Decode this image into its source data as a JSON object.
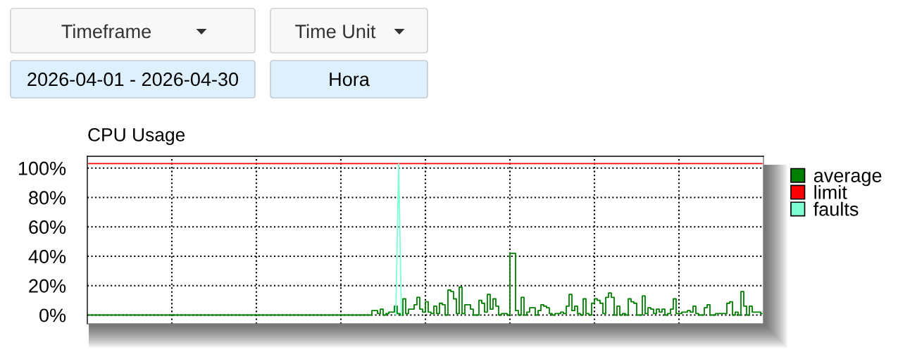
{
  "chart_data": {
    "type": "step",
    "title": "CPU Usage",
    "annotations": [
      "Timeframe",
      "Time Unit",
      "2026-04-01 - 2026-04-30",
      "Hora"
    ],
    "categories": [
      null,
      null,
      null,
      null,
      null,
      null,
      null,
      null,
      null,
      null,
      null,
      null,
      null,
      null,
      null,
      null,
      null,
      null,
      null,
      null,
      null,
      null,
      null,
      null,
      null,
      null,
      null,
      null,
      null,
      null,
      null,
      null,
      null,
      null,
      null,
      null,
      null,
      null,
      null,
      null,
      null,
      null,
      null,
      null,
      null,
      null,
      null,
      null,
      null,
      null,
      null,
      null,
      null,
      null,
      null,
      null,
      null,
      null,
      null,
      null,
      null,
      null,
      null,
      null,
      null,
      null,
      null,
      null,
      null,
      null,
      null,
      null,
      null,
      null,
      null,
      null,
      null,
      null,
      null,
      null,
      null,
      null,
      null,
      null,
      null,
      null,
      null,
      null,
      null,
      null,
      null,
      null,
      null,
      null,
      null,
      null,
      null,
      null,
      null,
      null,
      null,
      null,
      null,
      null,
      null,
      null,
      null,
      null,
      null,
      null,
      null,
      null,
      null,
      null,
      null,
      null,
      null,
      null,
      null,
      null,
      null,
      null,
      null,
      null,
      null,
      null,
      null,
      null,
      null,
      null,
      null,
      null,
      null,
      null,
      null,
      null,
      null,
      null,
      null,
      null,
      null,
      null,
      null,
      null,
      null,
      null,
      null,
      null,
      null,
      null,
      null,
      null,
      null,
      null,
      null,
      null,
      null,
      null,
      null,
      null,
      null,
      null,
      null,
      null,
      null,
      null,
      null,
      null,
      null,
      null,
      null,
      null,
      null,
      null,
      null,
      null,
      null,
      null,
      null,
      null,
      null,
      null,
      null,
      null,
      null,
      null,
      null,
      null,
      null,
      null,
      null,
      null,
      null,
      null,
      null,
      null,
      null,
      null,
      null,
      null,
      null,
      null,
      null,
      null,
      null,
      null,
      null,
      null,
      null,
      null,
      null,
      null,
      null,
      null,
      null,
      null,
      null,
      null,
      null,
      null,
      null,
      null,
      null,
      null,
      null,
      null,
      null,
      null,
      null,
      null,
      null,
      null,
      null,
      null,
      null,
      null,
      null,
      null,
      null,
      null
    ],
    "series": [
      {
        "name": "average",
        "color": "#008000",
        "values": [
          0,
          0,
          0,
          0,
          0,
          0,
          0,
          0,
          0,
          0,
          0,
          0,
          0,
          0,
          0,
          0,
          0,
          0,
          0,
          0,
          0,
          0,
          0,
          0,
          0,
          0,
          0,
          0,
          0,
          0,
          0,
          0,
          0,
          0,
          0,
          0,
          0,
          0,
          0,
          0,
          0,
          0,
          0,
          0,
          0,
          0,
          0,
          0,
          0,
          0,
          0,
          0,
          0,
          0,
          0,
          0,
          0,
          0,
          0,
          0,
          0,
          0,
          0,
          0,
          0,
          0,
          0,
          0,
          0,
          0,
          0,
          0,
          0,
          0,
          0,
          0,
          0,
          0,
          0,
          0,
          0,
          0,
          0,
          0,
          0,
          0,
          0,
          0,
          0,
          0,
          0,
          0,
          0,
          0,
          0,
          0,
          0,
          0,
          0,
          0,
          0,
          3,
          3,
          1,
          4,
          0,
          1,
          2,
          2,
          6,
          1,
          0,
          11,
          1,
          4,
          4,
          7,
          12,
          4,
          2,
          9,
          2,
          1,
          6,
          1,
          8,
          7,
          0,
          17,
          16,
          11,
          1,
          19,
          1,
          7,
          7,
          4,
          0,
          0,
          10,
          8,
          2,
          14,
          4,
          11,
          6,
          0,
          1,
          1,
          0,
          42,
          42,
          3,
          0,
          12,
          0,
          2,
          5,
          5,
          0,
          3,
          7,
          6,
          5,
          1,
          0,
          1,
          1,
          2,
          1,
          6,
          14,
          3,
          6,
          1,
          0,
          11,
          1,
          0,
          8,
          11,
          10,
          8,
          1,
          12,
          15,
          12,
          0,
          6,
          0,
          1,
          0,
          11,
          9,
          8,
          0,
          0,
          13,
          1,
          5,
          4,
          1,
          4,
          2,
          4,
          0,
          1,
          4,
          11,
          1,
          1,
          2,
          2,
          3,
          2,
          6,
          1,
          0,
          0,
          5,
          7,
          0,
          0,
          1,
          1,
          1,
          1,
          8,
          9,
          0,
          2,
          0,
          16,
          6,
          0,
          6,
          2,
          2,
          2,
          1
        ]
      },
      {
        "name": "limit",
        "color": "#ff0000",
        "values": [
          103,
          103,
          103,
          103,
          103,
          103,
          103,
          103,
          103,
          103,
          103,
          103,
          103,
          103,
          103,
          103,
          103,
          103,
          103,
          103,
          103,
          103,
          103,
          103,
          103,
          103,
          103,
          103,
          103,
          103,
          103,
          103,
          103,
          103,
          103,
          103,
          103,
          103,
          103,
          103,
          103,
          103,
          103,
          103,
          103,
          103,
          103,
          103,
          103,
          103,
          103,
          103,
          103,
          103,
          103,
          103,
          103,
          103,
          103,
          103,
          103,
          103,
          103,
          103,
          103,
          103,
          103,
          103,
          103,
          103,
          103,
          103,
          103,
          103,
          103,
          103,
          103,
          103,
          103,
          103,
          103,
          103,
          103,
          103,
          103,
          103,
          103,
          103,
          103,
          103,
          103,
          103,
          103,
          103,
          103,
          103,
          103,
          103,
          103,
          103,
          103,
          103,
          103,
          103,
          103,
          103,
          103,
          103,
          103,
          103,
          103,
          103,
          103,
          103,
          103,
          103,
          103,
          103,
          103,
          103,
          103,
          103,
          103,
          103,
          103,
          103,
          103,
          103,
          103,
          103,
          103,
          103,
          103,
          103,
          103,
          103,
          103,
          103,
          103,
          103,
          103,
          103,
          103,
          103,
          103,
          103,
          103,
          103,
          103,
          103,
          103,
          103,
          103,
          103,
          103,
          103,
          103,
          103,
          103,
          103,
          103,
          103,
          103,
          103,
          103,
          103,
          103,
          103,
          103,
          103,
          103,
          103,
          103,
          103,
          103,
          103,
          103,
          103,
          103,
          103,
          103,
          103,
          103,
          103,
          103,
          103,
          103,
          103,
          103,
          103,
          103,
          103,
          103,
          103,
          103,
          103,
          103,
          103,
          103,
          103,
          103,
          103,
          103,
          103,
          103,
          103,
          103,
          103,
          103,
          103,
          103,
          103,
          103,
          103,
          103,
          103,
          103,
          103,
          103,
          103,
          103,
          103,
          103,
          103,
          103,
          103,
          103,
          103,
          103,
          103,
          103,
          103,
          103,
          103,
          103,
          103,
          103,
          103,
          103,
          103
        ]
      },
      {
        "name": "faults",
        "color": "#7fffd4",
        "type": "line",
        "values": [
          null,
          null,
          null,
          null,
          null,
          null,
          null,
          null,
          null,
          null,
          null,
          null,
          null,
          null,
          null,
          null,
          null,
          null,
          null,
          null,
          null,
          null,
          null,
          null,
          null,
          null,
          null,
          null,
          null,
          null,
          null,
          null,
          null,
          null,
          null,
          null,
          null,
          null,
          null,
          null,
          null,
          null,
          null,
          null,
          null,
          null,
          null,
          null,
          null,
          null,
          null,
          null,
          null,
          null,
          null,
          null,
          null,
          null,
          null,
          null,
          null,
          null,
          null,
          null,
          null,
          null,
          null,
          null,
          null,
          null,
          null,
          null,
          null,
          null,
          null,
          null,
          null,
          null,
          null,
          null,
          null,
          null,
          null,
          null,
          null,
          null,
          null,
          null,
          null,
          null,
          null,
          null,
          null,
          null,
          null,
          null,
          null,
          null,
          null,
          null,
          null,
          null,
          null,
          null,
          null,
          null,
          null,
          null,
          null,
          0,
          103,
          0,
          null,
          null,
          null,
          null,
          null,
          null,
          null,
          null,
          null,
          null,
          null,
          null,
          null,
          null,
          null,
          null,
          null,
          null,
          null,
          null,
          null,
          null,
          null,
          null,
          null,
          null,
          null,
          null,
          null,
          null,
          null,
          null,
          null,
          null,
          null,
          null,
          null,
          null,
          null,
          null,
          null,
          null,
          null,
          null,
          null,
          null,
          null,
          null,
          null,
          null,
          null,
          null,
          null,
          null,
          null,
          null,
          null,
          null,
          null,
          null,
          null,
          null,
          null,
          null,
          null,
          null,
          null,
          null,
          null,
          null,
          null,
          null,
          null,
          null,
          null,
          null,
          null,
          null,
          null,
          null,
          null,
          null,
          null,
          null,
          null,
          null,
          null,
          null,
          null,
          null,
          null,
          null,
          null,
          null,
          null,
          null,
          null,
          null,
          null,
          null,
          null,
          null,
          null,
          null,
          null,
          null,
          null,
          null,
          null,
          null,
          null,
          null,
          null,
          null,
          null,
          null,
          null,
          null,
          null,
          null,
          null,
          null,
          null,
          null,
          null,
          null,
          null,
          null
        ]
      }
    ],
    "ylim": [
      -6,
      108
    ],
    "yticks": [
      {
        "value": 0,
        "label": "0%"
      },
      {
        "value": 20,
        "label": "20%"
      },
      {
        "value": 40,
        "label": "40%"
      },
      {
        "value": 60,
        "label": "60%"
      },
      {
        "value": 80,
        "label": "80%"
      },
      {
        "value": 100,
        "label": "100%"
      }
    ],
    "grid": true,
    "legend": "top right",
    "tick_labels": "y"
  }
}
